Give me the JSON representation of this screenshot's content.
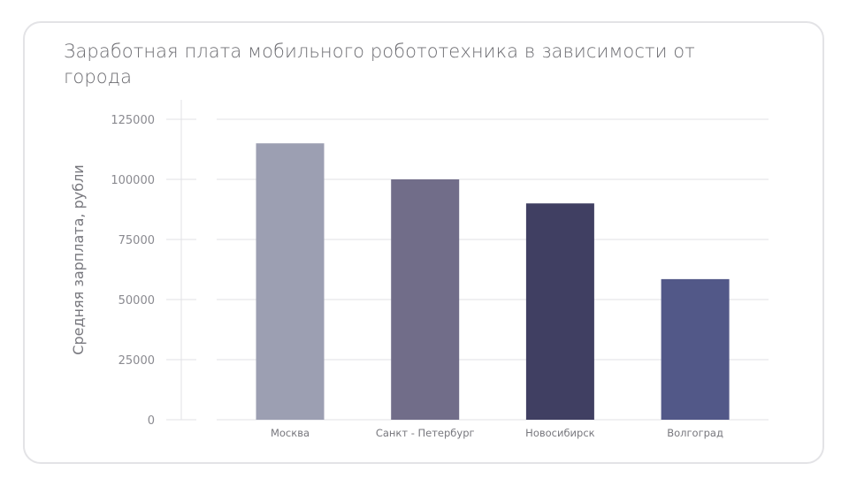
{
  "chart_data": {
    "type": "bar",
    "title": "Заработная плата мобильного робототехника в зависимости от города",
    "xlabel": "",
    "ylabel": "Средняя зарплата, рубли",
    "categories": [
      "Москва",
      "Санкт - Петербург",
      "Новосибирск",
      "Волгоград"
    ],
    "values": [
      115000,
      100000,
      90000,
      58500
    ],
    "colors": [
      "#9c9fb2",
      "#716d89",
      "#403f62",
      "#525888"
    ],
    "ylim": [
      0,
      125000
    ],
    "yticks": [
      "0",
      "25000",
      "50000",
      "75000",
      "100000",
      "125000"
    ],
    "grid": true,
    "legend": "none"
  }
}
